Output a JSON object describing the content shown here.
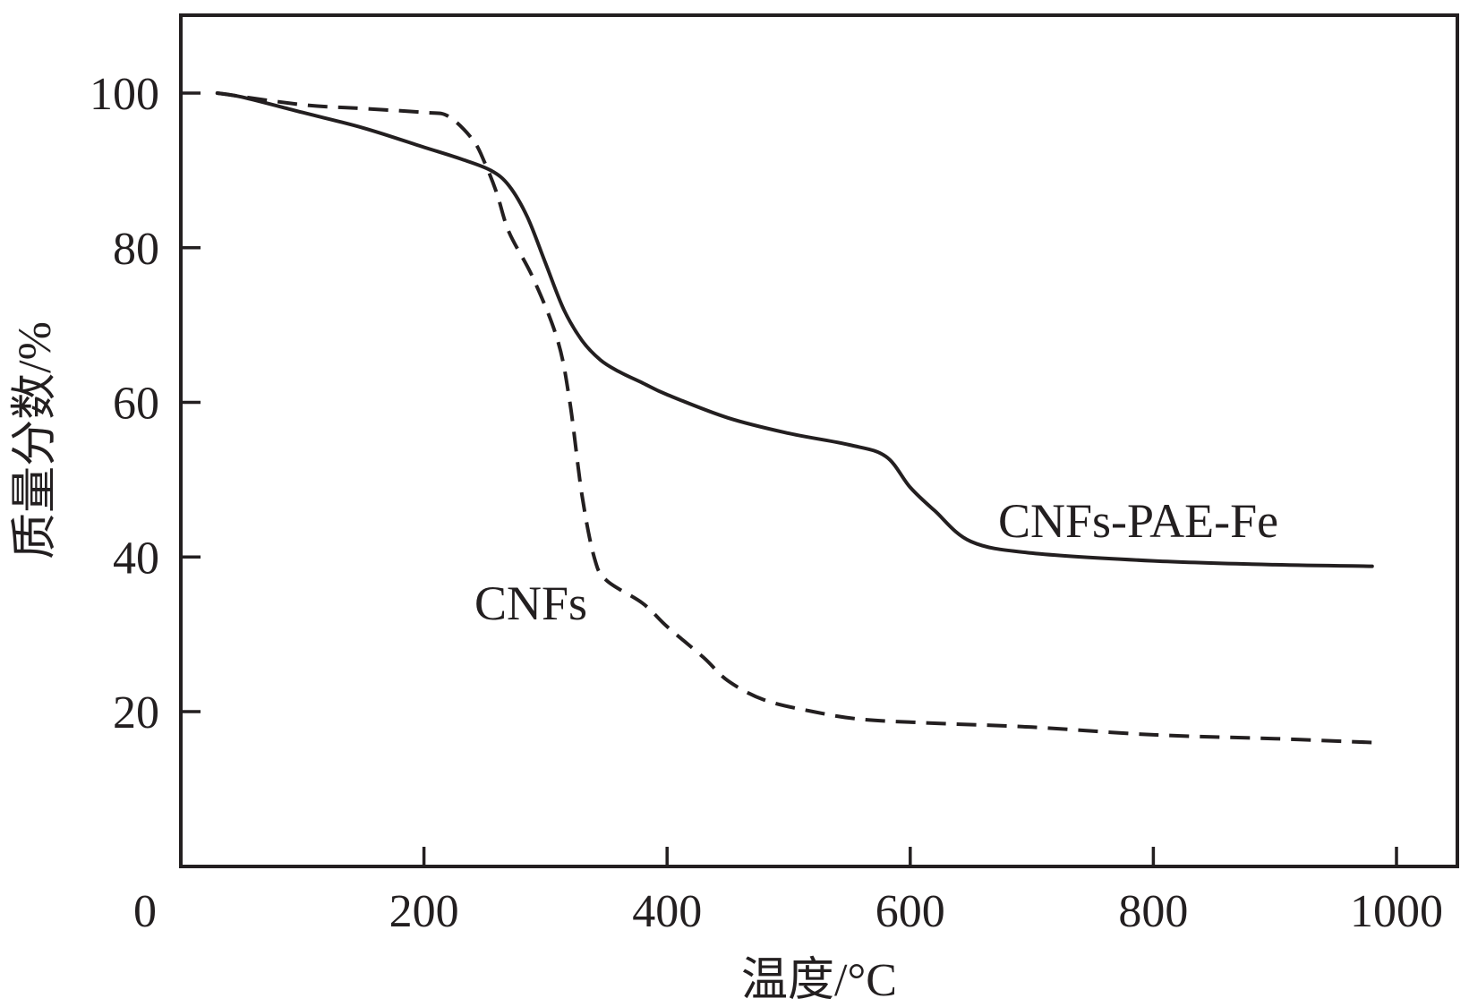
{
  "chart_data": {
    "type": "line",
    "title": "",
    "xlabel": "温度/°C",
    "ylabel": "质量分数/%",
    "xlim": [
      0,
      1000
    ],
    "ylim": [
      0,
      110
    ],
    "x_ticks": [
      0,
      200,
      400,
      600,
      800,
      1000
    ],
    "y_ticks": [
      20,
      40,
      60,
      80,
      100
    ],
    "x_tick_labels": [
      "0",
      "200",
      "400",
      "600",
      "800",
      "1000"
    ],
    "y_tick_labels": [
      "20",
      "40",
      "60",
      "80",
      "100"
    ],
    "grid": false,
    "legend": "none",
    "series": [
      {
        "name": "CNFs-PAE-Fe",
        "style": "solid",
        "x": [
          30,
          50,
          100,
          150,
          200,
          230,
          255,
          270,
          285,
          300,
          315,
          330,
          345,
          360,
          380,
          400,
          450,
          500,
          550,
          580,
          600,
          620,
          650,
          700,
          800,
          900,
          980
        ],
        "y": [
          100,
          99.5,
          97.5,
          95.5,
          93,
          91.5,
          90,
          88,
          84,
          78,
          72,
          68,
          65.5,
          64,
          62.5,
          61,
          58,
          56,
          54.5,
          53,
          49,
          46,
          42,
          40.5,
          39.5,
          39,
          38.8
        ]
      },
      {
        "name": "CNFs",
        "style": "dashed",
        "x": [
          30,
          100,
          150,
          200,
          220,
          240,
          250,
          260,
          270,
          290,
          310,
          320,
          330,
          340,
          350,
          380,
          400,
          430,
          450,
          480,
          520,
          560,
          620,
          700,
          800,
          900,
          980
        ],
        "y": [
          100,
          98.5,
          98,
          97.5,
          97,
          94,
          91,
          87,
          82,
          76,
          68,
          60,
          48,
          40,
          37,
          34,
          31,
          27,
          24,
          21.5,
          20,
          19,
          18.5,
          18,
          17,
          16.5,
          16
        ]
      }
    ]
  }
}
